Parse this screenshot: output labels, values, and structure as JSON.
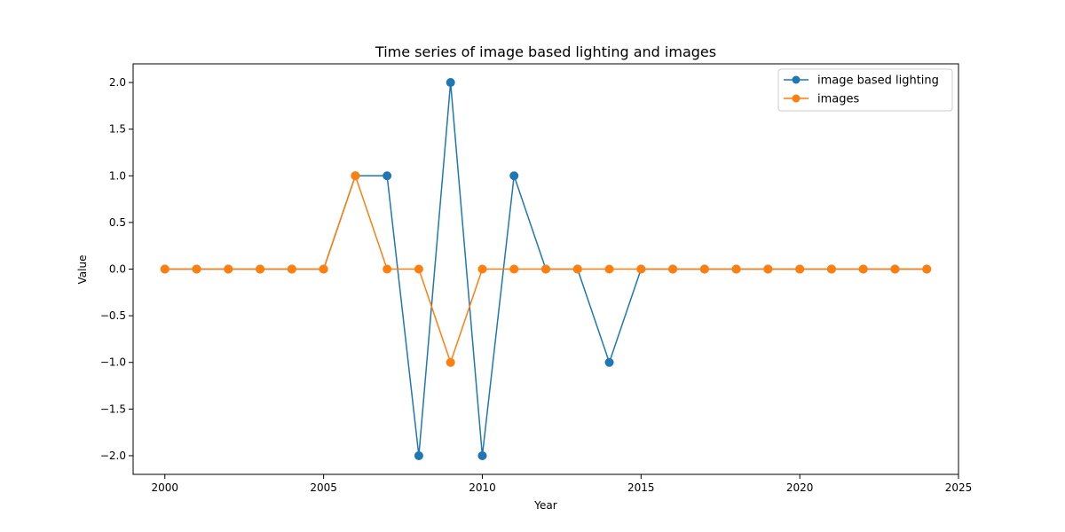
{
  "chart_data": {
    "type": "line",
    "title": "Time series of image based lighting and images",
    "xlabel": "Year",
    "ylabel": "Value",
    "xlim": [
      1999,
      2025
    ],
    "ylim": [
      -2.2,
      2.2
    ],
    "xticks": [
      2000,
      2005,
      2010,
      2015,
      2020,
      2025
    ],
    "xtick_labels": [
      "2000",
      "2005",
      "2010",
      "2015",
      "2020",
      "2025"
    ],
    "yticks": [
      -2.0,
      -1.5,
      -1.0,
      -0.5,
      0.0,
      0.5,
      1.0,
      1.5,
      2.0
    ],
    "ytick_labels": [
      "−2.0",
      "−1.5",
      "−1.0",
      "−0.5",
      "0.0",
      "0.5",
      "1.0",
      "1.5",
      "2.0"
    ],
    "grid": false,
    "legend_position": "top-right",
    "x": [
      2000,
      2001,
      2002,
      2003,
      2004,
      2005,
      2006,
      2007,
      2008,
      2009,
      2010,
      2011,
      2012,
      2013,
      2014,
      2015,
      2016,
      2017,
      2018,
      2019,
      2020,
      2021,
      2022,
      2023,
      2024
    ],
    "series": [
      {
        "name": "image based lighting",
        "color": "#1f77b4",
        "values": [
          0,
          0,
          0,
          0,
          0,
          0,
          1,
          1,
          -2,
          2,
          -2,
          1,
          0,
          0,
          -1,
          0,
          0,
          0,
          0,
          0,
          0,
          0,
          0,
          0,
          0
        ]
      },
      {
        "name": "images",
        "color": "#ff7f0e",
        "values": [
          0,
          0,
          0,
          0,
          0,
          0,
          1,
          0,
          0,
          -1,
          0,
          0,
          0,
          0,
          0,
          0,
          0,
          0,
          0,
          0,
          0,
          0,
          0,
          0,
          0
        ]
      }
    ]
  }
}
